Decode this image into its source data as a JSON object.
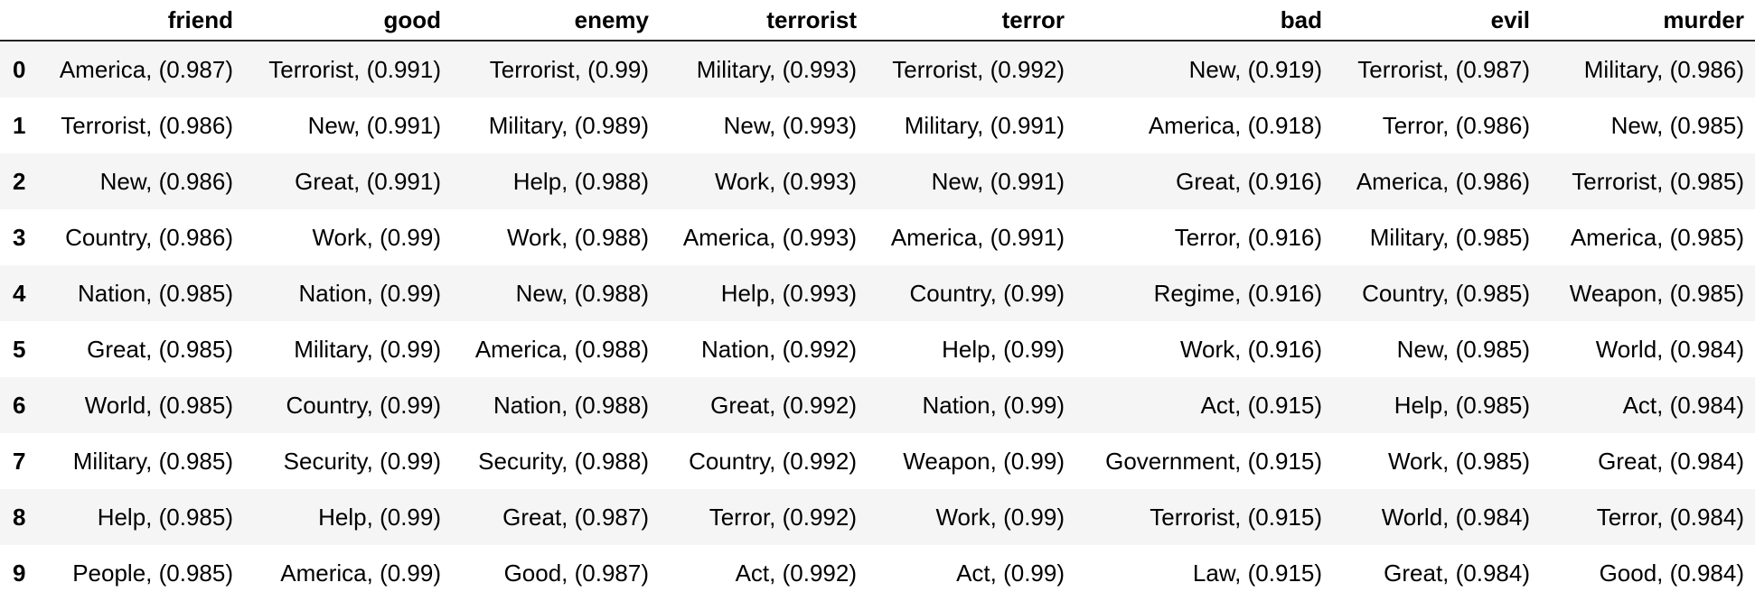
{
  "table": {
    "index_header": "",
    "columns": [
      "friend",
      "good",
      "enemy",
      "terrorist",
      "terror",
      "bad",
      "evil",
      "murder"
    ],
    "rows": [
      {
        "index": "0",
        "cells": [
          "America, (0.987)",
          "Terrorist, (0.991)",
          "Terrorist, (0.99)",
          "Military, (0.993)",
          "Terrorist, (0.992)",
          "New, (0.919)",
          "Terrorist, (0.987)",
          "Military, (0.986)"
        ]
      },
      {
        "index": "1",
        "cells": [
          "Terrorist, (0.986)",
          "New, (0.991)",
          "Military, (0.989)",
          "New, (0.993)",
          "Military, (0.991)",
          "America, (0.918)",
          "Terror, (0.986)",
          "New, (0.985)"
        ]
      },
      {
        "index": "2",
        "cells": [
          "New, (0.986)",
          "Great, (0.991)",
          "Help, (0.988)",
          "Work, (0.993)",
          "New, (0.991)",
          "Great, (0.916)",
          "America, (0.986)",
          "Terrorist, (0.985)"
        ]
      },
      {
        "index": "3",
        "cells": [
          "Country, (0.986)",
          "Work, (0.99)",
          "Work, (0.988)",
          "America, (0.993)",
          "America, (0.991)",
          "Terror, (0.916)",
          "Military, (0.985)",
          "America, (0.985)"
        ]
      },
      {
        "index": "4",
        "cells": [
          "Nation, (0.985)",
          "Nation, (0.99)",
          "New, (0.988)",
          "Help, (0.993)",
          "Country, (0.99)",
          "Regime, (0.916)",
          "Country, (0.985)",
          "Weapon, (0.985)"
        ]
      },
      {
        "index": "5",
        "cells": [
          "Great, (0.985)",
          "Military, (0.99)",
          "America, (0.988)",
          "Nation, (0.992)",
          "Help, (0.99)",
          "Work, (0.916)",
          "New, (0.985)",
          "World, (0.984)"
        ]
      },
      {
        "index": "6",
        "cells": [
          "World, (0.985)",
          "Country, (0.99)",
          "Nation, (0.988)",
          "Great, (0.992)",
          "Nation, (0.99)",
          "Act, (0.915)",
          "Help, (0.985)",
          "Act, (0.984)"
        ]
      },
      {
        "index": "7",
        "cells": [
          "Military, (0.985)",
          "Security, (0.99)",
          "Security, (0.988)",
          "Country, (0.992)",
          "Weapon, (0.99)",
          "Government, (0.915)",
          "Work, (0.985)",
          "Great, (0.984)"
        ]
      },
      {
        "index": "8",
        "cells": [
          "Help, (0.985)",
          "Help, (0.99)",
          "Great, (0.987)",
          "Terror, (0.992)",
          "Work, (0.99)",
          "Terrorist, (0.915)",
          "World, (0.984)",
          "Terror, (0.984)"
        ]
      },
      {
        "index": "9",
        "cells": [
          "People, (0.985)",
          "America, (0.99)",
          "Good, (0.987)",
          "Act, (0.992)",
          "Act, (0.99)",
          "Law, (0.915)",
          "Great, (0.984)",
          "Good, (0.984)"
        ]
      }
    ]
  }
}
